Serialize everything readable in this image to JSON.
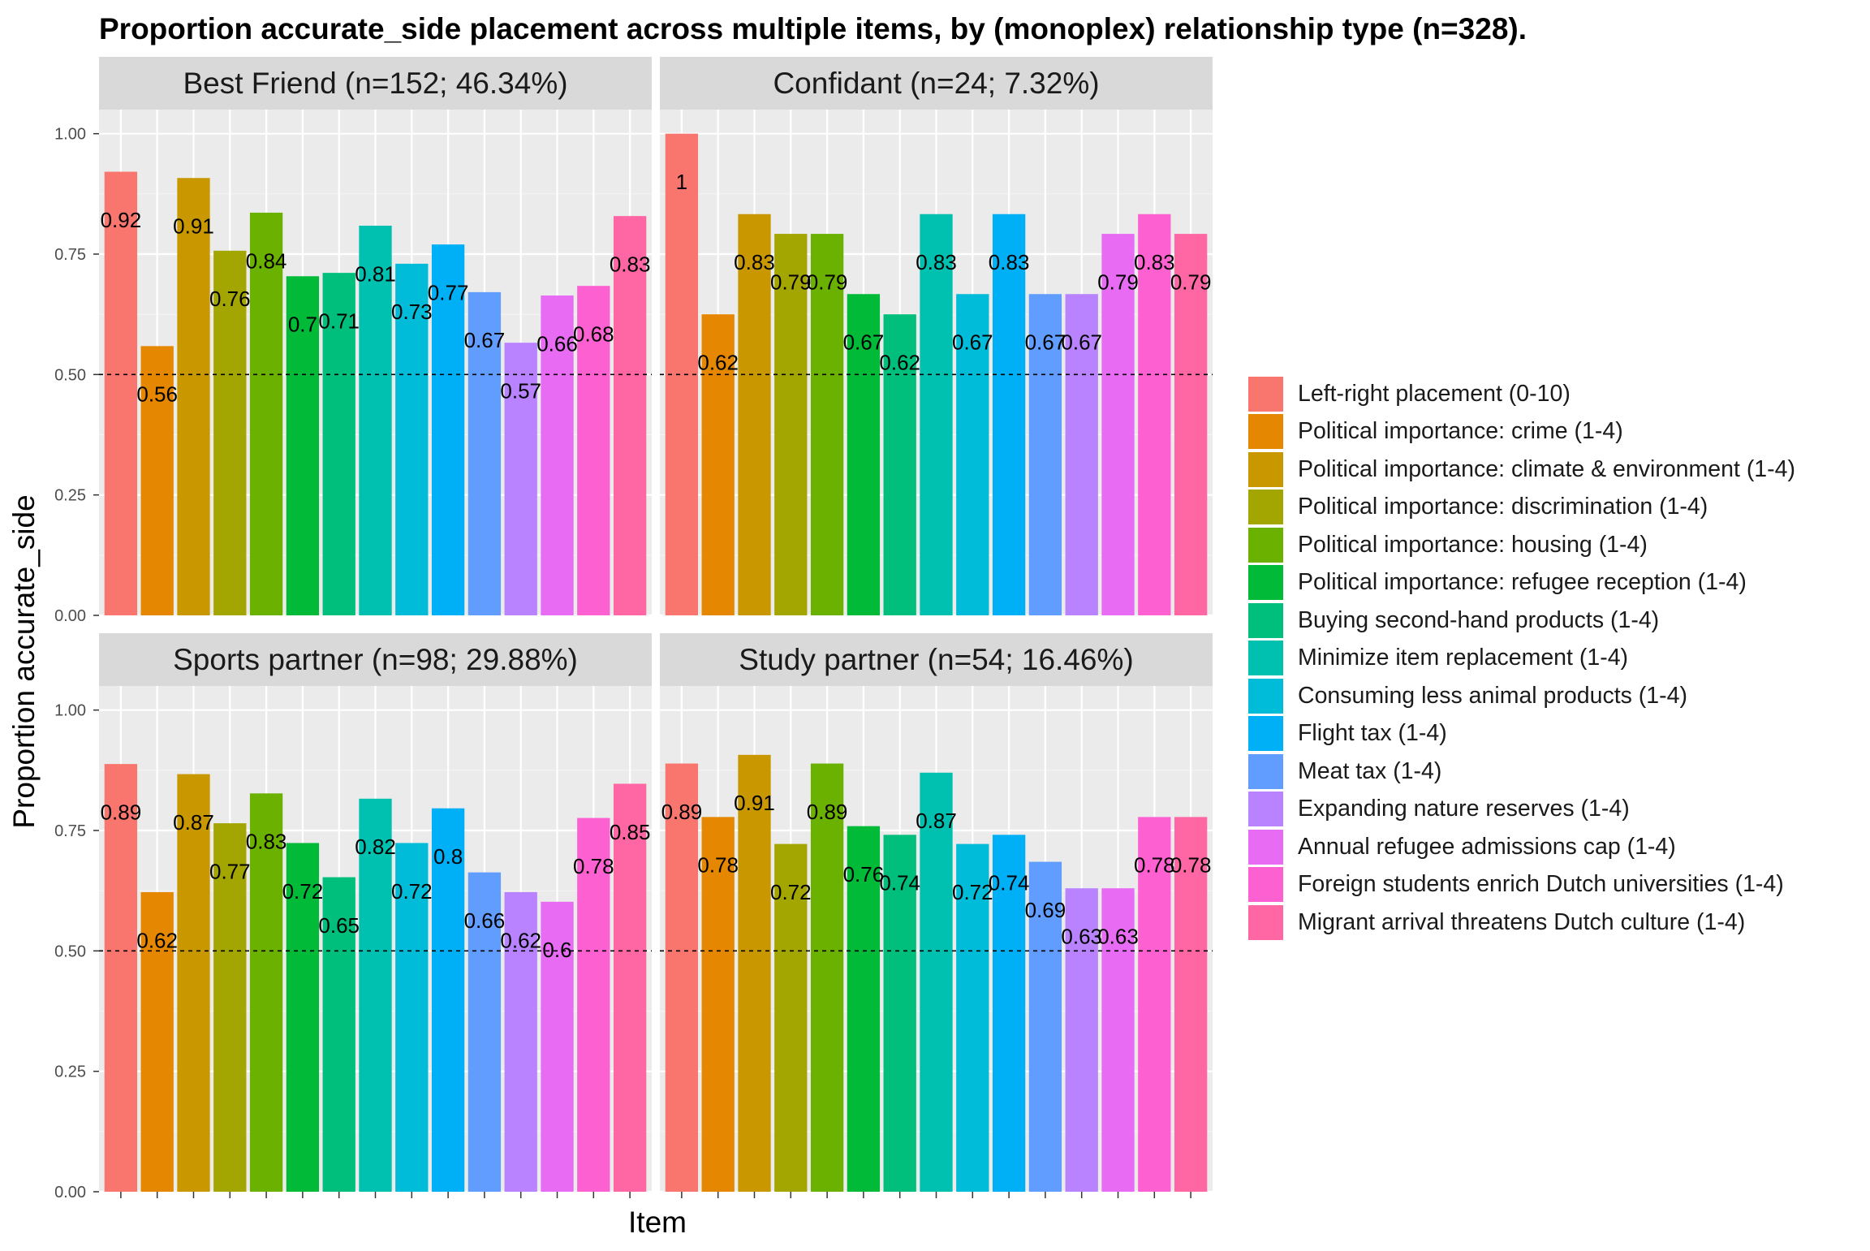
{
  "chart_data": {
    "type": "bar",
    "title": "Proportion accurate_side placement across multiple items, by (monoplex) relationship type (n=328).",
    "xlabel": "Item",
    "ylabel": "Proportion accurate_side",
    "ylim": [
      0,
      1.05
    ],
    "yticks": [
      "0.00",
      "0.25",
      "0.50",
      "0.75",
      "1.00"
    ],
    "reference_line": 0.5,
    "grid": true,
    "legend_position": "right",
    "categories": [
      "Left-right placement (0-10)",
      "Political importance: crime (1-4)",
      "Political importance: climate & environment (1-4)",
      "Political importance: discrimination (1-4)",
      "Political importance: housing (1-4)",
      "Political importance: refugee reception (1-4)",
      "Buying second-hand products (1-4)",
      "Minimize item replacement (1-4)",
      "Consuming less animal products (1-4)",
      "Flight tax (1-4)",
      "Meat tax (1-4)",
      "Expanding nature reserves (1-4)",
      "Annual refugee admissions cap (1-4)",
      "Foreign students enrich Dutch universities (1-4)",
      "Migrant arrival threatens Dutch culture (1-4)"
    ],
    "colors": [
      "#F8766D",
      "#E58700",
      "#C99800",
      "#A3A500",
      "#6BB100",
      "#00BA38",
      "#00BF7D",
      "#00C0AF",
      "#00BCD8",
      "#00B0F6",
      "#619CFF",
      "#B983FF",
      "#E76BF3",
      "#FD61D1",
      "#FF67A4"
    ],
    "panels": [
      {
        "title": "Best Friend (n=152; 46.34%)",
        "values": [
          0.921,
          0.559,
          0.908,
          0.757,
          0.836,
          0.704,
          0.711,
          0.809,
          0.73,
          0.77,
          0.671,
          0.566,
          0.664,
          0.684,
          0.829
        ],
        "labels": [
          "0.92",
          "0.56",
          "0.91",
          "0.76",
          "0.84",
          "0.7",
          "0.71",
          "0.81",
          "0.73",
          "0.77",
          "0.67",
          "0.57",
          "0.66",
          "0.68",
          "0.83"
        ]
      },
      {
        "title": "Confidant (n=24; 7.32%)",
        "values": [
          1.0,
          0.625,
          0.833,
          0.792,
          0.792,
          0.667,
          0.625,
          0.833,
          0.667,
          0.833,
          0.667,
          0.667,
          0.792,
          0.833,
          0.792
        ],
        "labels": [
          "1",
          "0.62",
          "0.83",
          "0.79",
          "0.79",
          "0.67",
          "0.62",
          "0.83",
          "0.67",
          "0.83",
          "0.67",
          "0.67",
          "0.79",
          "0.83",
          "0.79"
        ]
      },
      {
        "title": "Sports partner (n=98; 29.88%)",
        "values": [
          0.888,
          0.622,
          0.867,
          0.765,
          0.827,
          0.724,
          0.653,
          0.816,
          0.724,
          0.796,
          0.663,
          0.622,
          0.602,
          0.776,
          0.847
        ],
        "labels": [
          "0.89",
          "0.62",
          "0.87",
          "0.77",
          "0.83",
          "0.72",
          "0.65",
          "0.82",
          "0.72",
          "0.8",
          "0.66",
          "0.62",
          "0.6",
          "0.78",
          "0.85"
        ]
      },
      {
        "title": "Study partner (n=54; 16.46%)",
        "values": [
          0.889,
          0.778,
          0.907,
          0.722,
          0.889,
          0.759,
          0.741,
          0.87,
          0.722,
          0.741,
          0.685,
          0.63,
          0.63,
          0.778,
          0.778
        ],
        "labels": [
          "0.89",
          "0.78",
          "0.91",
          "0.72",
          "0.89",
          "0.76",
          "0.74",
          "0.87",
          "0.72",
          "0.74",
          "0.69",
          "0.63",
          "0.63",
          "0.78",
          "0.78"
        ]
      }
    ]
  }
}
